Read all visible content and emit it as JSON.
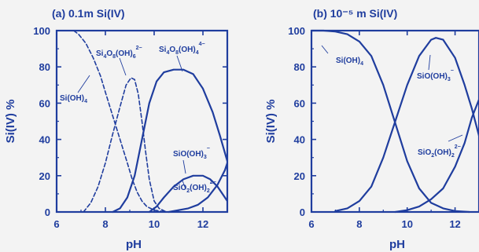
{
  "colors": {
    "ink": "#1f3d9e",
    "background": "#f3f3f3"
  },
  "chart_data": [
    {
      "panel": "a",
      "type": "line",
      "title": "(a)  0.1m Si(IV)",
      "xlabel": "pH",
      "ylabel": "Si(IV) %",
      "xlim": [
        6,
        13
      ],
      "ylim": [
        0,
        100
      ],
      "xticks": [
        "6",
        "8",
        "10",
        "12"
      ],
      "yticks": [
        "0",
        "20",
        "40",
        "60",
        "80",
        "100"
      ],
      "grid": false,
      "legend": "inline labels",
      "series": [
        {
          "name": "Si(OH)4",
          "style": "dashed",
          "points": [
            [
              6.7,
              100
            ],
            [
              6.9,
              98
            ],
            [
              7.2,
              93
            ],
            [
              7.5,
              85
            ],
            [
              7.8,
              75
            ],
            [
              8.0,
              66
            ],
            [
              8.3,
              53
            ],
            [
              8.6,
              40
            ],
            [
              8.9,
              27
            ],
            [
              9.1,
              18
            ],
            [
              9.3,
              11
            ],
            [
              9.5,
              6
            ],
            [
              9.7,
              3
            ],
            [
              10.0,
              1
            ],
            [
              10.5,
              0
            ]
          ]
        },
        {
          "name": "Si4O8(OH)6 2-",
          "style": "dashed",
          "points": [
            [
              7.1,
              0
            ],
            [
              7.4,
              5
            ],
            [
              7.7,
              14
            ],
            [
              8.0,
              27
            ],
            [
              8.3,
              43
            ],
            [
              8.6,
              58
            ],
            [
              8.85,
              70
            ],
            [
              9.05,
              74
            ],
            [
              9.2,
              73
            ],
            [
              9.35,
              65
            ],
            [
              9.5,
              50
            ],
            [
              9.65,
              33
            ],
            [
              9.8,
              18
            ],
            [
              10.0,
              6
            ],
            [
              10.2,
              2
            ],
            [
              10.5,
              0
            ]
          ]
        },
        {
          "name": "Si4O8(OH)4 4-",
          "style": "solid",
          "points": [
            [
              8.3,
              0
            ],
            [
              8.6,
              2
            ],
            [
              8.9,
              8
            ],
            [
              9.2,
              20
            ],
            [
              9.5,
              40
            ],
            [
              9.8,
              60
            ],
            [
              10.1,
              72
            ],
            [
              10.4,
              77
            ],
            [
              10.8,
              78.5
            ],
            [
              11.2,
              78.5
            ],
            [
              11.6,
              76
            ],
            [
              12.0,
              68
            ],
            [
              12.4,
              55
            ],
            [
              12.7,
              42
            ],
            [
              13.0,
              28
            ]
          ]
        },
        {
          "name": "SiO(OH)3 -",
          "style": "solid",
          "points": [
            [
              9.8,
              0
            ],
            [
              10.1,
              3
            ],
            [
              10.4,
              8
            ],
            [
              10.8,
              14
            ],
            [
              11.2,
              18
            ],
            [
              11.6,
              20
            ],
            [
              12.0,
              20
            ],
            [
              12.3,
              18
            ],
            [
              12.6,
              14
            ],
            [
              12.85,
              9
            ],
            [
              13.0,
              6
            ]
          ]
        },
        {
          "name": "SiO2(OH)2 2-",
          "style": "solid",
          "points": [
            [
              10.6,
              0
            ],
            [
              11.0,
              1
            ],
            [
              11.4,
              2
            ],
            [
              11.8,
              4
            ],
            [
              12.2,
              8
            ],
            [
              12.6,
              15
            ],
            [
              12.9,
              23
            ],
            [
              13.0,
              27
            ]
          ]
        }
      ],
      "annotations": [
        "Si(OH)4",
        "Si4O8(OH)6 2-",
        "Si4O8(OH)4 4-",
        "SiO(OH)3 -",
        "SiO2(OH)2 2-"
      ]
    },
    {
      "panel": "b",
      "type": "line",
      "title": "(b)  10⁻⁵ m Si(IV)",
      "xlabel": "pH",
      "ylabel": "Si(IV) %",
      "xlim": [
        6,
        13
      ],
      "ylim": [
        0,
        100
      ],
      "xticks": [
        "6",
        "8",
        "10",
        "12"
      ],
      "yticks": [
        "0",
        "20",
        "40",
        "60",
        "80",
        "100"
      ],
      "grid": false,
      "legend": "inline labels",
      "series": [
        {
          "name": "Si(OH)4",
          "style": "solid",
          "points": [
            [
              6.0,
              100
            ],
            [
              6.5,
              100
            ],
            [
              7.0,
              99.5
            ],
            [
              7.5,
              98
            ],
            [
              8.0,
              94
            ],
            [
              8.5,
              86
            ],
            [
              9.0,
              70
            ],
            [
              9.5,
              49
            ],
            [
              10.0,
              28
            ],
            [
              10.5,
              13
            ],
            [
              11.0,
              5
            ],
            [
              11.5,
              2
            ],
            [
              12.0,
              0.5
            ],
            [
              12.6,
              0
            ]
          ]
        },
        {
          "name": "SiO(OH)3 -",
          "style": "solid",
          "points": [
            [
              7.0,
              0.5
            ],
            [
              7.5,
              2
            ],
            [
              8.0,
              6
            ],
            [
              8.5,
              14
            ],
            [
              9.0,
              30
            ],
            [
              9.5,
              50
            ],
            [
              10.0,
              70
            ],
            [
              10.5,
              86
            ],
            [
              11.0,
              95
            ],
            [
              11.2,
              96
            ],
            [
              11.5,
              95
            ],
            [
              12.0,
              85
            ],
            [
              12.4,
              70
            ],
            [
              12.7,
              57
            ],
            [
              13.0,
              42
            ]
          ]
        },
        {
          "name": "SiO2(OH)2 2-",
          "style": "solid",
          "points": [
            [
              9.5,
              0
            ],
            [
              10.0,
              1
            ],
            [
              10.5,
              3
            ],
            [
              11.0,
              7
            ],
            [
              11.5,
              13
            ],
            [
              12.0,
              25
            ],
            [
              12.4,
              38
            ],
            [
              12.7,
              52
            ],
            [
              13.0,
              62
            ]
          ]
        }
      ],
      "annotations": [
        "Si(OH)4",
        "SiO(OH)3 -",
        "SiO2(OH)2 2-"
      ]
    }
  ]
}
